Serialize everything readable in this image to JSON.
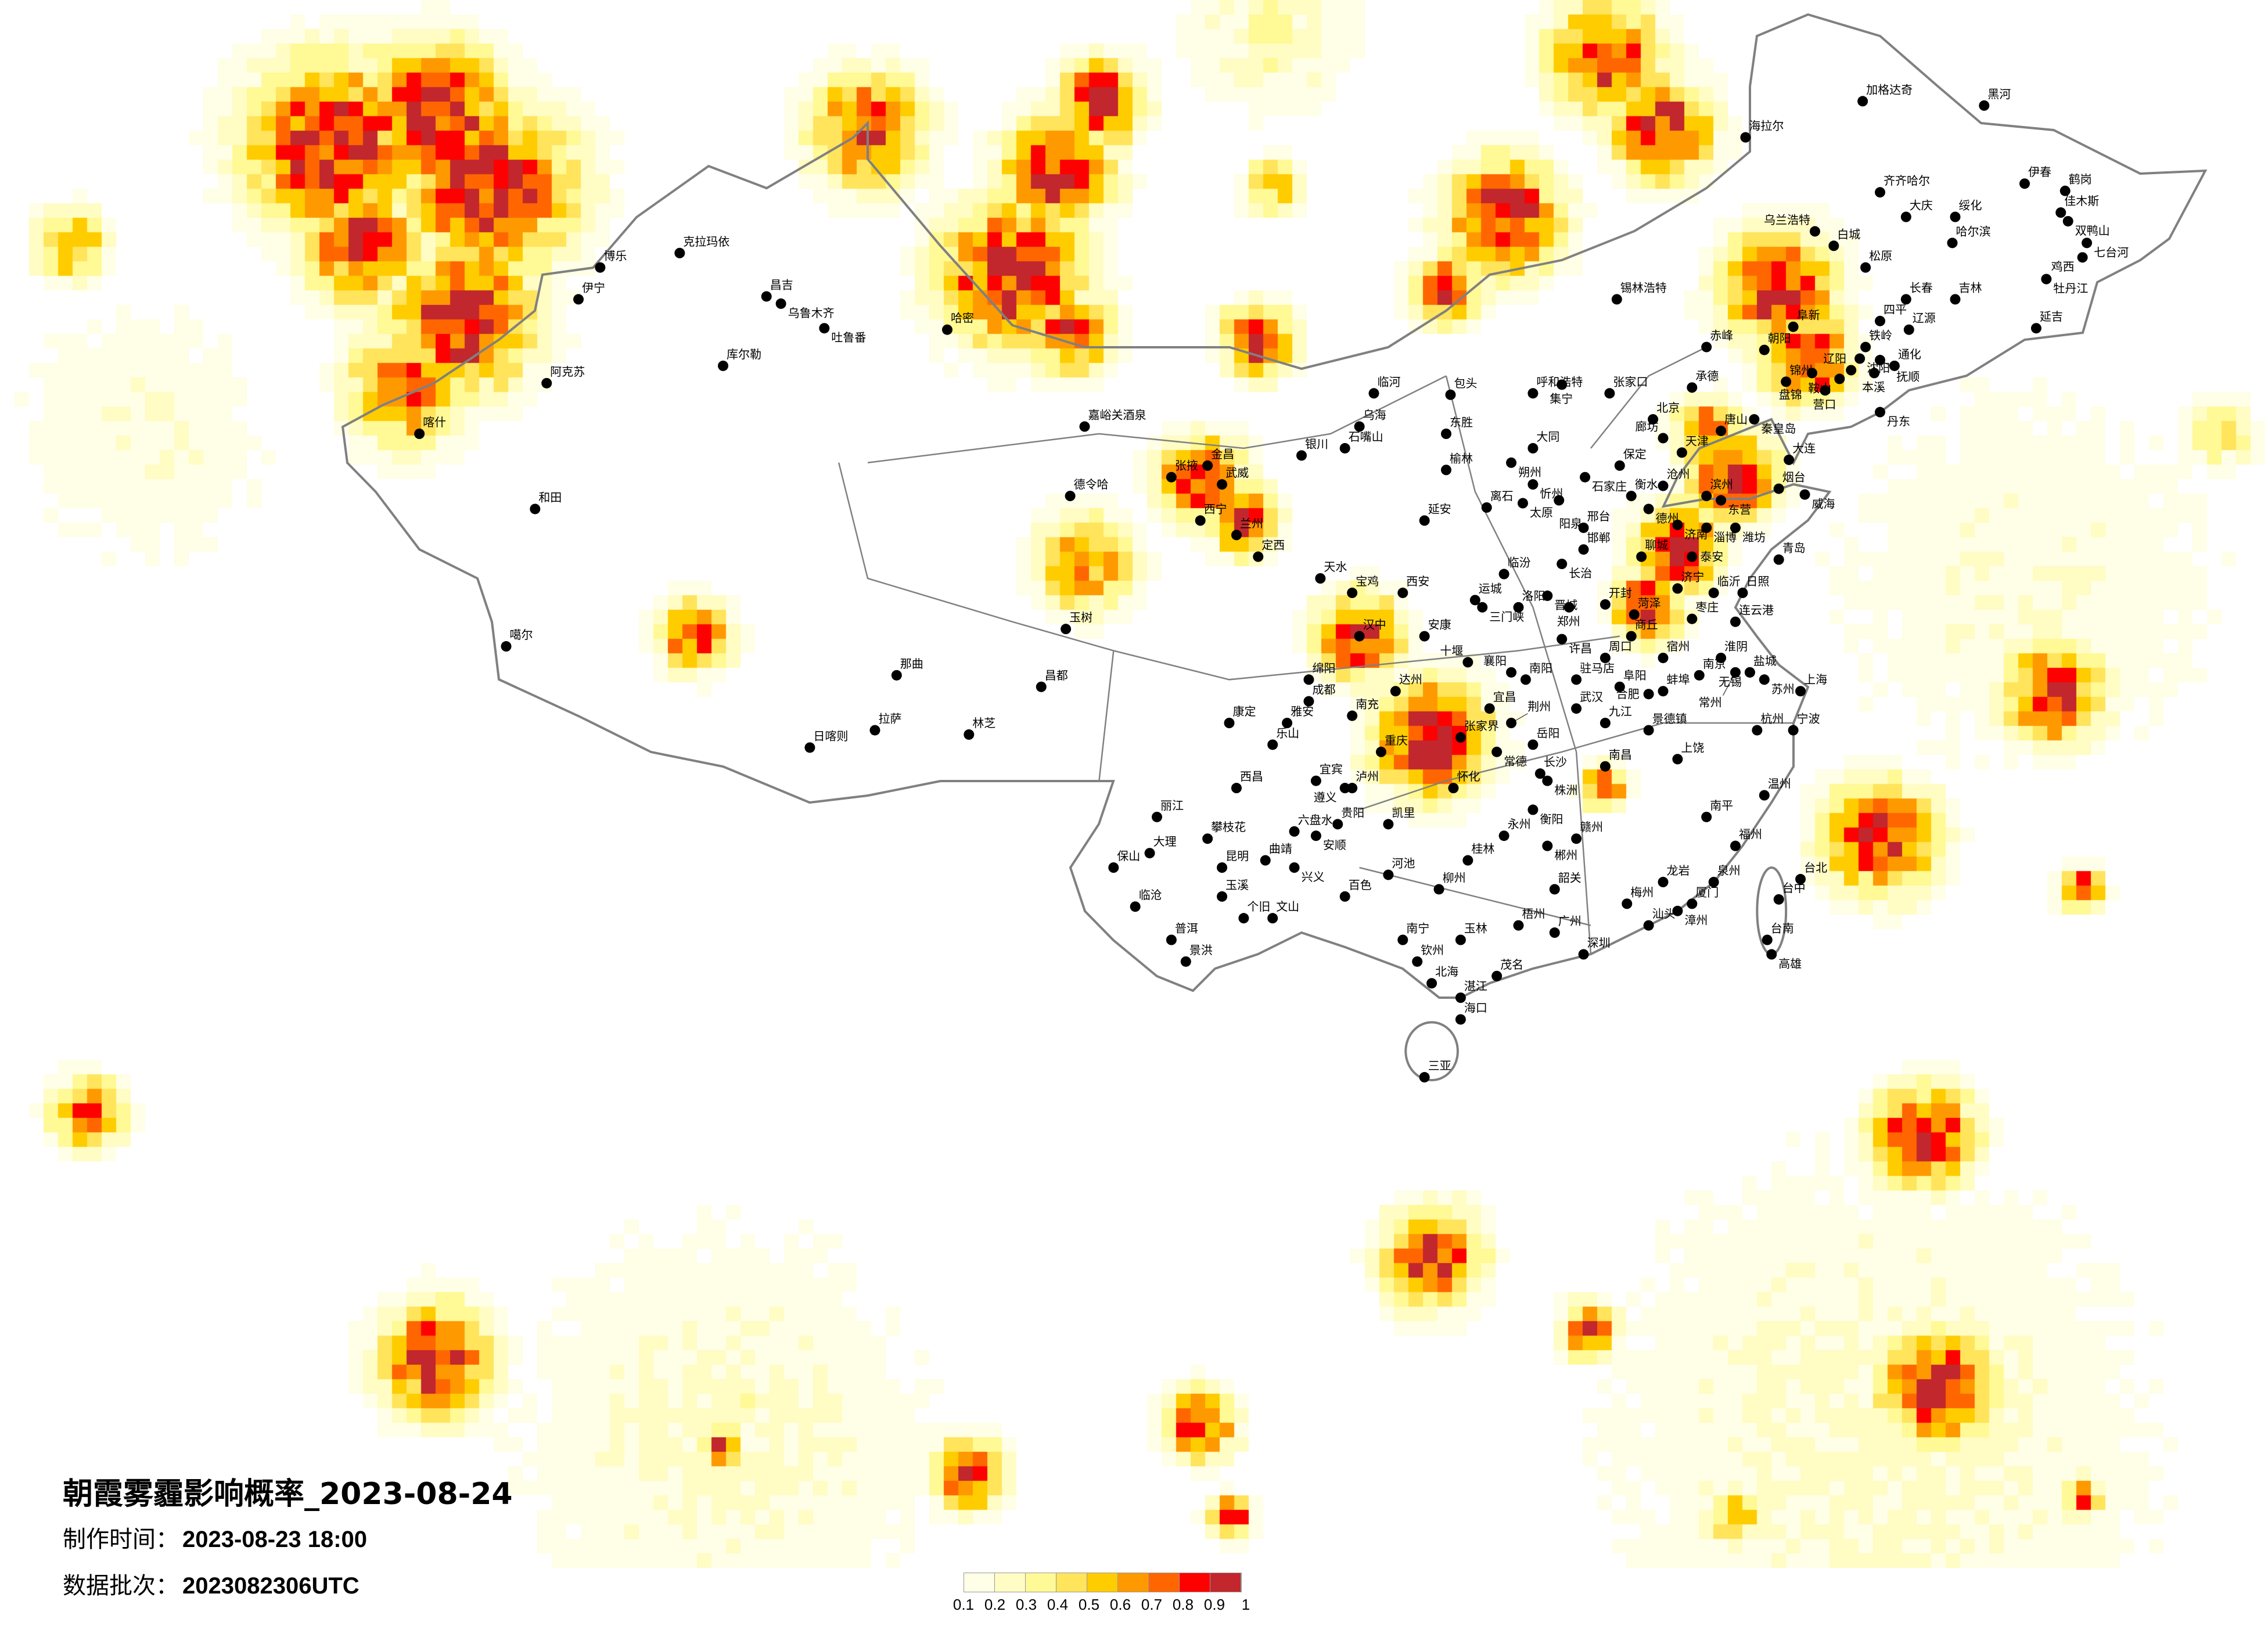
{
  "title": "朝霞雾霾影响概率_2023-08-24",
  "made_time": {
    "label": "制作时间：",
    "value": "2023-08-23 18:00"
  },
  "data_batch": {
    "label": "数据批次：",
    "value": "2023082306UTC"
  },
  "legend": {
    "labels": [
      "0.1",
      "0.2",
      "0.3",
      "0.4",
      "0.5",
      "0.6",
      "0.7",
      "0.8",
      "0.9",
      "1"
    ],
    "colors": [
      "#FFFEE6",
      "#FFFCC4",
      "#FFF996",
      "#FFE45C",
      "#FFCC00",
      "#FF9900",
      "#FF6600",
      "#FF0000",
      "#C1272D"
    ]
  },
  "map": {
    "boundary_color": "#808080",
    "city_dot_color": "#000000",
    "cities": [
      "加格达奇",
      "黑河",
      "伊春",
      "齐齐哈尔",
      "大庆",
      "绥化",
      "鹤岗",
      "佳木斯",
      "双鸭山",
      "哈尔滨",
      "七台河",
      "鸡西",
      "牡丹江",
      "长春",
      "吉林",
      "松原",
      "白城",
      "乌兰浩特",
      "海拉尔",
      "通化",
      "延吉",
      "四平",
      "辽源",
      "铁岭",
      "沈阳",
      "抚顺",
      "本溪",
      "辽阳",
      "丹东",
      "鞍山",
      "营口",
      "大连",
      "锦州",
      "盘锦",
      "阜新",
      "朝阳",
      "赤峰",
      "锡林浩特",
      "呼和浩特",
      "包头",
      "集宁",
      "张家口",
      "承德",
      "北京",
      "天津",
      "唐山",
      "秦皇岛",
      "廊坊",
      "保定",
      "沧州",
      "石家庄",
      "衡水",
      "邢台",
      "邯郸",
      "德州",
      "大同",
      "朔州",
      "忻州",
      "太原",
      "阳泉",
      "离石",
      "临汾",
      "长治",
      "晋城",
      "运城",
      "三门峡",
      "洛阳",
      "郑州",
      "开封",
      "济南",
      "滨州",
      "东营",
      "淄博",
      "潍坊",
      "青岛",
      "烟台",
      "威海",
      "日照",
      "临沂",
      "济宁",
      "泰安",
      "聊城",
      "菏泽",
      "枣庄",
      "商丘",
      "连云港",
      "淮阴",
      "盐城",
      "宿州",
      "许昌",
      "周口",
      "南阳",
      "驻马店",
      "阜阳",
      "蚌埠",
      "克拉玛依",
      "伊宁",
      "博乐",
      "昌吉",
      "乌鲁木齐",
      "吐鲁番",
      "库尔勒",
      "哈密",
      "阿克苏",
      "喀什",
      "和田",
      "噶尔",
      "日喀则",
      "拉萨",
      "林芝",
      "那曲",
      "昌都",
      "嘉峪关酒泉",
      "德令哈",
      "玉树",
      "西宁",
      "兰州",
      "银川",
      "石嘴山",
      "乌海",
      "金昌",
      "武威",
      "张掖",
      "天水",
      "定西",
      "西安",
      "宝鸡",
      "延安",
      "榆林",
      "东胜",
      "临河",
      "汉中",
      "安康",
      "成都",
      "重庆",
      "雅安",
      "乐山",
      "宜宾",
      "泸州",
      "绵阳",
      "南充",
      "达州",
      "康定",
      "西昌",
      "攀枝花",
      "丽江",
      "大理",
      "昆明",
      "曲靖",
      "玉溪",
      "保山",
      "临沧",
      "普洱",
      "景洪",
      "个旧",
      "文山",
      "贵阳",
      "六盘水",
      "安顺",
      "遵义",
      "凯里",
      "兴义",
      "南宁",
      "百色",
      "河池",
      "柳州",
      "桂林",
      "梧州",
      "玉林",
      "钦州",
      "北海",
      "湛江",
      "海口",
      "三亚",
      "茂名",
      "广州",
      "深圳",
      "汕头",
      "梅州",
      "韶关",
      "赣州",
      "长沙",
      "株洲",
      "衡阳",
      "郴州",
      "永州",
      "怀化",
      "张家界",
      "常德",
      "岳阳",
      "武汉",
      "宜昌",
      "襄阳",
      "十堰",
      "荆州",
      "南昌",
      "九江",
      "景德镇",
      "上饶",
      "福州",
      "厦门",
      "泉州",
      "漳州",
      "龙岩",
      "南平",
      "温州",
      "杭州",
      "宁波",
      "合肥",
      "南京",
      "上海",
      "苏州",
      "无锡",
      "常州",
      "台北",
      "台中",
      "台南",
      "高雄"
    ]
  }
}
